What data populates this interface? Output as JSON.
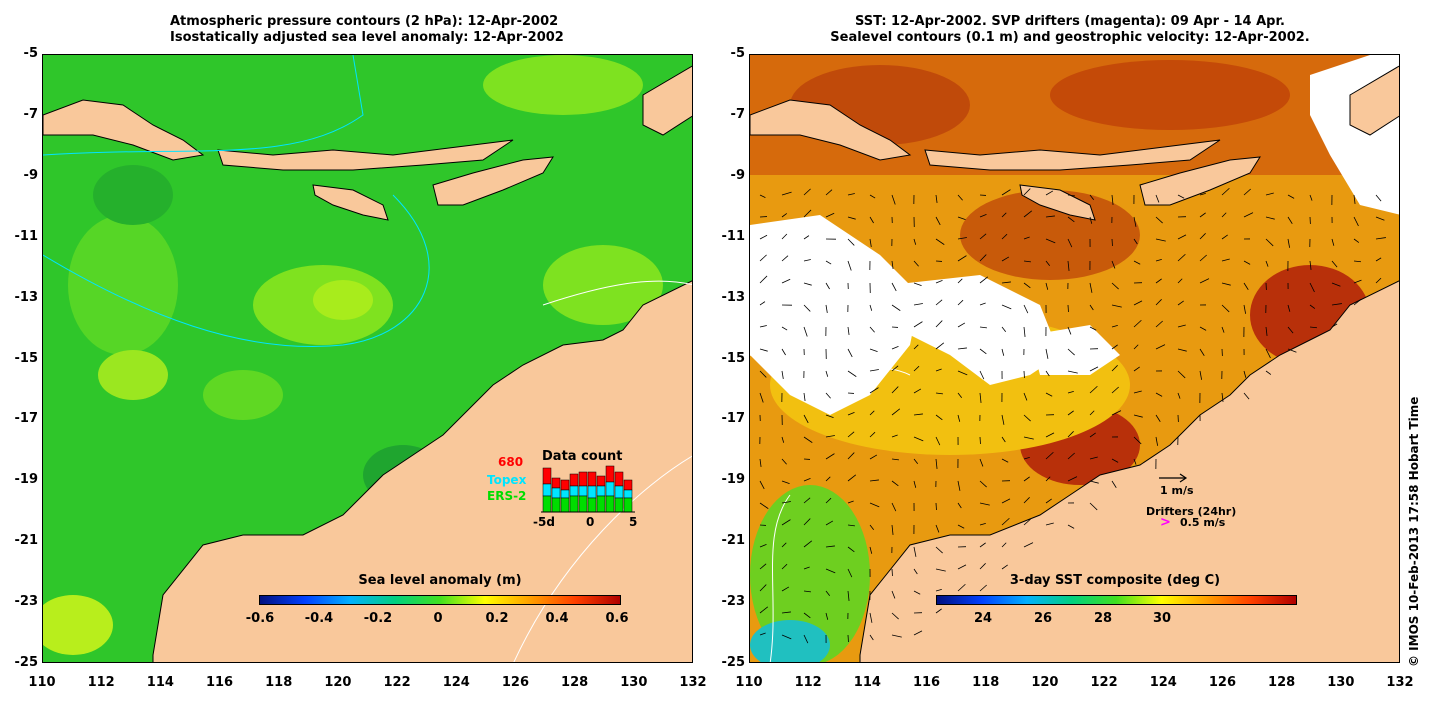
{
  "left": {
    "title_line1": "Atmospheric pressure contours (2 hPa): 12-Apr-2002",
    "title_line2": "Isostatically adjusted sea level anomaly: 12-Apr-2002",
    "colorbar_title": "Sea level anomaly (m)",
    "colorbar_ticks": [
      "-0.6",
      "-0.4",
      "-0.2",
      "0",
      "0.2",
      "0.4",
      "0.6"
    ],
    "legend": {
      "count": "680",
      "topex": "Topex",
      "ers2": "ERS-2",
      "data_count_title": "Data count",
      "hist_ticks": [
        "-5d",
        "0",
        "5"
      ],
      "colors": {
        "count": "#ff0000",
        "topex": "#00e5ff",
        "ers2": "#00dd00"
      }
    }
  },
  "right": {
    "title_line1": "SST: 12-Apr-2002. SVP drifters (magenta): 09 Apr - 14 Apr.",
    "title_line2": "Sealevel contours (0.1 m) and geostrophic velocity: 12-Apr-2002.",
    "colorbar_title": "3-day SST composite (deg C)",
    "colorbar_ticks": [
      "24",
      "26",
      "28",
      "30"
    ],
    "vector_scale_label": "1 m/s",
    "drifters_label": "Drifters (24hr)",
    "drifters_speed": "0.5 m/s",
    "drifter_color": "#ff00ff"
  },
  "y_ticks": [
    "-5",
    "-7",
    "-9",
    "-11",
    "-13",
    "-15",
    "-17",
    "-19",
    "-21",
    "-23",
    "-25"
  ],
  "x_ticks": [
    "110",
    "112",
    "114",
    "116",
    "118",
    "120",
    "122",
    "124",
    "126",
    "128",
    "130",
    "132"
  ],
  "copyright": "© IMOS 10-Feb-2013 17:58 Hobart Time",
  "colors": {
    "land": "#f9c89b",
    "ocean_sla": "#33cc22",
    "sst_warm": "#e08a10"
  }
}
